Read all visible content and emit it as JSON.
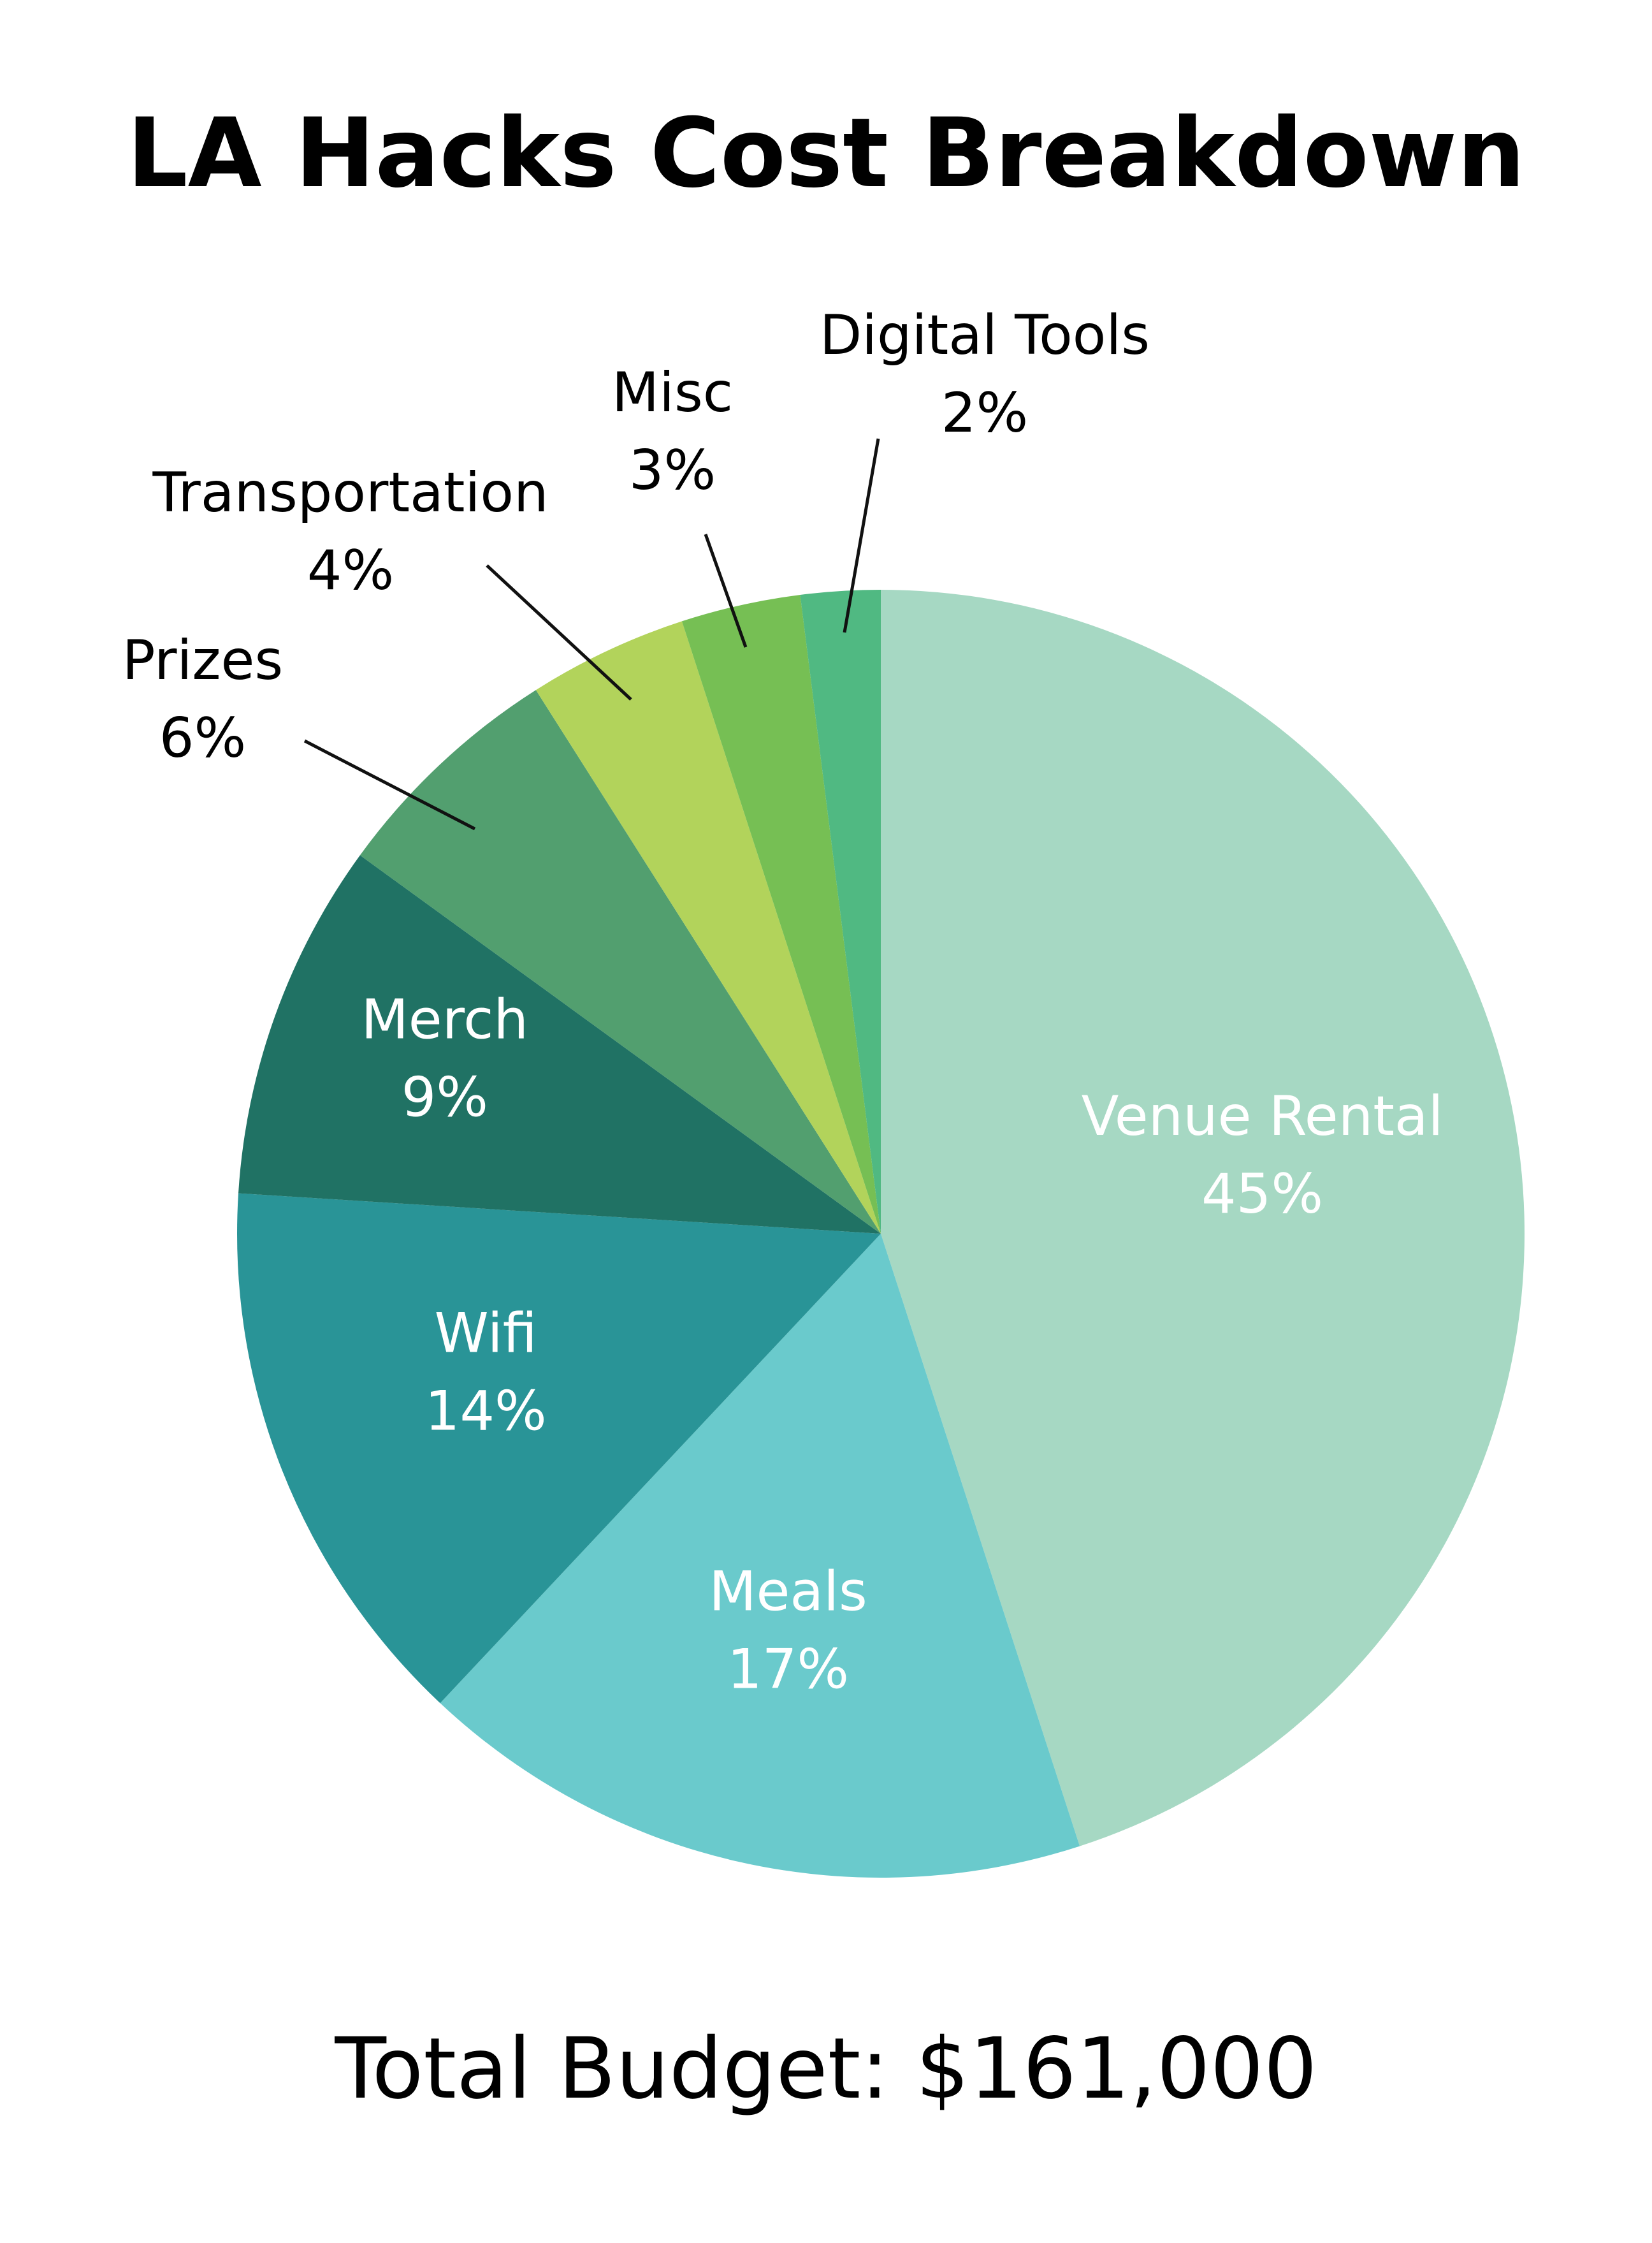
{
  "chart_data": {
    "type": "pie",
    "title": "LA Hacks Cost Breakdown",
    "footer": "Total Budget: $161,000",
    "start": "12 o'clock",
    "direction": "clockwise",
    "slices": [
      {
        "label": "Venue Rental",
        "value": 45,
        "value_text": "45%",
        "color": "#a6d8c3",
        "label_color": "#ffffff",
        "placement": "inside"
      },
      {
        "label": "Meals",
        "value": 17,
        "value_text": "17%",
        "color": "#6acacc",
        "label_color": "#ffffff",
        "placement": "inside"
      },
      {
        "label": "Wifi",
        "value": 14,
        "value_text": "14%",
        "color": "#299497",
        "label_color": "#ffffff",
        "placement": "inside"
      },
      {
        "label": "Merch",
        "value": 9,
        "value_text": "9%",
        "color": "#207264",
        "label_color": "#ffffff",
        "placement": "inside"
      },
      {
        "label": "Prizes",
        "value": 6,
        "value_text": "6%",
        "color": "#529f6f",
        "label_color": "#000000",
        "placement": "outside"
      },
      {
        "label": "Transportation",
        "value": 4,
        "value_text": "4%",
        "color": "#b2d35b",
        "label_color": "#000000",
        "placement": "outside"
      },
      {
        "label": "Misc",
        "value": 3,
        "value_text": "3%",
        "color": "#76bf54",
        "label_color": "#000000",
        "placement": "outside"
      },
      {
        "label": "Digital Tools",
        "value": 2,
        "value_text": "2%",
        "color": "#50b982",
        "label_color": "#000000",
        "placement": "outside"
      }
    ]
  }
}
